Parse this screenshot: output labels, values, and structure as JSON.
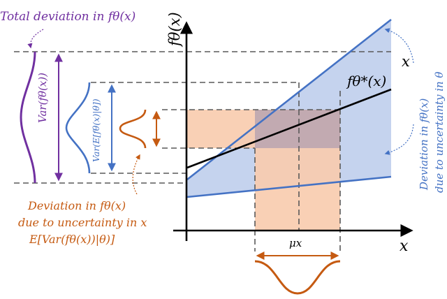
{
  "colors": {
    "purple": "#7030a0",
    "blue": "#4472c4",
    "blue_fill": "#c5d3ee",
    "orange": "#c55a11",
    "orange_fill": "#f8cbad",
    "dash": "#595959"
  },
  "labels": {
    "total_deviation": "Total deviation in fθ(x)",
    "var_total": "Var(fθ(x))",
    "var_expectation": "Var(E[fθ(x)|θ])",
    "deviation_x_line1": "Deviation in fθ(x)",
    "deviation_x_line2": "due to uncertainty in x",
    "deviation_x_line3": "E[Var(fθ(x))|θ)]",
    "y_axis": "fθ(x)",
    "x_axis": "x",
    "mean_line": "fθ*(x)",
    "mu_x": "μx",
    "deviation_theta_line1": "Deviation in fθ(x)",
    "deviation_theta_line2": "due to uncertainty in θ"
  }
}
